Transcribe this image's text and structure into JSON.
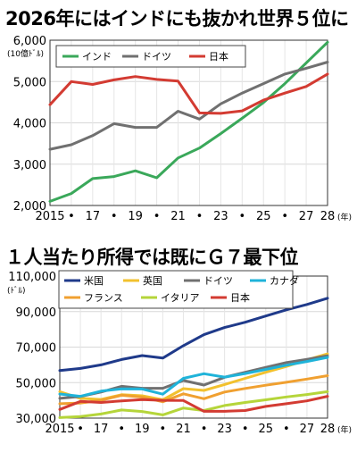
{
  "headline1": "2026年にはインドにも抜かれ世界５位に",
  "headline2": "１人当たり所得では既にＧ７最下位",
  "chart_data": [
    {
      "type": "line",
      "title": "2026年にはインドにも抜かれ世界５位に",
      "ylabel": "(10億ﾄﾞﾙ)",
      "xlabel": "(年)",
      "ylim": [
        2000,
        6000
      ],
      "yticks": [
        "2,000",
        "3,000",
        "4,000",
        "5,000",
        "6,000"
      ],
      "ytick_values": [
        2000,
        3000,
        4000,
        5000,
        6000
      ],
      "x": [
        2015,
        2016,
        2017,
        2018,
        2019,
        2020,
        2021,
        2022,
        2023,
        2024,
        2025,
        2026,
        2027,
        2028
      ],
      "xticks": [
        "2015",
        "•",
        "17",
        "•",
        "19",
        "•",
        "21",
        "•",
        "23",
        "•",
        "25",
        "•",
        "27",
        "28"
      ],
      "legend_position": "top",
      "grid": true,
      "series": [
        {
          "name": "インド",
          "color": "#3aa85a",
          "values": [
            2100,
            2290,
            2650,
            2700,
            2840,
            2670,
            3150,
            3390,
            3740,
            4110,
            4490,
            4950,
            5450,
            5950
          ]
        },
        {
          "name": "ドイツ",
          "color": "#707070",
          "values": [
            3360,
            3470,
            3690,
            3980,
            3890,
            3890,
            4280,
            4090,
            4460,
            4720,
            4950,
            5180,
            5320,
            5470
          ]
        },
        {
          "name": "日本",
          "color": "#d33b32",
          "values": [
            4440,
            5000,
            4930,
            5040,
            5120,
            5050,
            5010,
            4240,
            4230,
            4290,
            4550,
            4720,
            4880,
            5180
          ]
        }
      ]
    },
    {
      "type": "line",
      "title": "１人当たり所得では既にＧ７最下位",
      "ylabel": "(ﾄﾞﾙ)",
      "xlabel": "(年)",
      "ylim": [
        30000,
        110000
      ],
      "yticks": [
        "30,000",
        "50,000",
        "70,000",
        "90,000",
        "110,000"
      ],
      "ytick_values": [
        30000,
        50000,
        70000,
        90000,
        110000
      ],
      "x": [
        2015,
        2016,
        2017,
        2018,
        2019,
        2020,
        2021,
        2022,
        2023,
        2024,
        2025,
        2026,
        2027,
        2028
      ],
      "xticks": [
        "2015",
        "•",
        "17",
        "•",
        "19",
        "•",
        "21",
        "•",
        "23",
        "•",
        "25",
        "•",
        "27",
        "28"
      ],
      "legend_position": "top",
      "grid": true,
      "series": [
        {
          "name": "米国",
          "color": "#1f3a8a",
          "values": [
            56800,
            58000,
            60000,
            63000,
            65200,
            63800,
            70800,
            77000,
            81000,
            84000,
            87500,
            91000,
            94000,
            97500
          ]
        },
        {
          "name": "英国",
          "color": "#f2c12e",
          "values": [
            44900,
            41100,
            40500,
            43200,
            42600,
            40300,
            46600,
            45600,
            48900,
            52400,
            55800,
            59100,
            62800,
            66200
          ]
        },
        {
          "name": "ドイツ",
          "color": "#707070",
          "values": [
            41100,
            42200,
            44700,
            47900,
            46800,
            46800,
            51200,
            48600,
            53000,
            55800,
            58600,
            61300,
            63100,
            65100
          ]
        },
        {
          "name": "カナダ",
          "color": "#1fb3d9",
          "values": [
            43600,
            42300,
            45200,
            46500,
            46400,
            43500,
            52400,
            55000,
            53100,
            55100,
            57400,
            59800,
            61900,
            64200
          ]
        },
        {
          "name": "フランス",
          "color": "#f0a030",
          "values": [
            38100,
            38500,
            40000,
            42900,
            41800,
            39200,
            43700,
            40900,
            44700,
            46700,
            48500,
            50200,
            52000,
            53900
          ]
        },
        {
          "name": "イタリア",
          "color": "#b5d53a",
          "values": [
            30300,
            30900,
            32300,
            34600,
            33700,
            31800,
            35700,
            34300,
            37100,
            38800,
            40300,
            41900,
            43300,
            44900
          ]
        },
        {
          "name": "日本",
          "color": "#d33b32",
          "values": [
            34900,
            39400,
            38800,
            39700,
            40400,
            40000,
            39900,
            33800,
            33800,
            34300,
            36600,
            38100,
            39700,
            42300
          ]
        }
      ]
    }
  ]
}
